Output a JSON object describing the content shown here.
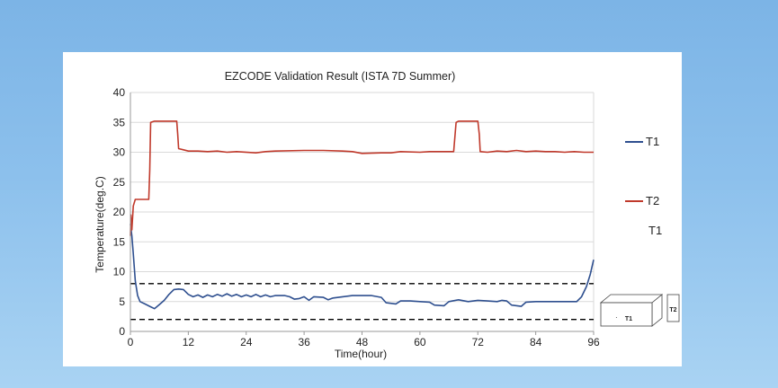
{
  "chart_data": {
    "type": "line",
    "title": "EZCODE Validation Result (ISTA 7D Summer)",
    "xlabel": "Time(hour)",
    "ylabel": "Temperature(deg.C)",
    "xlim": [
      0,
      96
    ],
    "ylim": [
      0,
      40
    ],
    "x_ticks": [
      0,
      12,
      24,
      36,
      48,
      60,
      72,
      84,
      96
    ],
    "y_ticks": [
      0,
      5,
      10,
      15,
      20,
      25,
      30,
      35,
      40
    ],
    "grid": "horizontal",
    "legend_placement": "right",
    "reference_lines": [
      {
        "y": 8,
        "style": "dashed",
        "color": "#000000"
      },
      {
        "y": 2,
        "style": "dashed",
        "color": "#000000"
      }
    ],
    "series": [
      {
        "name": "T1",
        "color": "#2e4f8f",
        "points": [
          [
            0,
            18
          ],
          [
            0.3,
            16
          ],
          [
            0.6,
            13
          ],
          [
            1,
            8.5
          ],
          [
            1.5,
            6
          ],
          [
            2,
            5
          ],
          [
            3,
            4.6
          ],
          [
            4,
            4.2
          ],
          [
            5,
            3.8
          ],
          [
            6,
            4.5
          ],
          [
            7,
            5.2
          ],
          [
            8,
            6.2
          ],
          [
            9,
            7
          ],
          [
            10,
            7.1
          ],
          [
            11,
            7
          ],
          [
            12,
            6.2
          ],
          [
            13,
            5.8
          ],
          [
            14,
            6.1
          ],
          [
            15,
            5.7
          ],
          [
            16,
            6.1
          ],
          [
            17,
            5.8
          ],
          [
            18,
            6.2
          ],
          [
            19,
            5.9
          ],
          [
            20,
            6.3
          ],
          [
            21,
            5.9
          ],
          [
            22,
            6.2
          ],
          [
            23,
            5.8
          ],
          [
            24,
            6.1
          ],
          [
            25,
            5.8
          ],
          [
            26,
            6.2
          ],
          [
            27,
            5.8
          ],
          [
            28,
            6.1
          ],
          [
            29,
            5.8
          ],
          [
            30,
            6
          ],
          [
            31,
            6
          ],
          [
            32,
            6
          ],
          [
            33,
            5.8
          ],
          [
            34,
            5.4
          ],
          [
            35,
            5.5
          ],
          [
            36,
            5.8
          ],
          [
            37,
            5.2
          ],
          [
            38,
            5.8
          ],
          [
            40,
            5.7
          ],
          [
            41,
            5.3
          ],
          [
            42,
            5.6
          ],
          [
            44,
            5.8
          ],
          [
            46,
            6
          ],
          [
            50,
            6
          ],
          [
            52,
            5.7
          ],
          [
            53,
            4.8
          ],
          [
            55,
            4.6
          ],
          [
            56,
            5.1
          ],
          [
            58,
            5.1
          ],
          [
            60,
            5
          ],
          [
            62,
            4.9
          ],
          [
            63,
            4.4
          ],
          [
            65,
            4.3
          ],
          [
            66,
            5
          ],
          [
            68,
            5.3
          ],
          [
            70,
            5
          ],
          [
            72,
            5.2
          ],
          [
            74,
            5.1
          ],
          [
            76,
            5
          ],
          [
            77,
            5.2
          ],
          [
            78,
            5.1
          ],
          [
            79,
            4.4
          ],
          [
            81,
            4.2
          ],
          [
            82,
            4.9
          ],
          [
            84,
            5
          ],
          [
            90,
            5
          ],
          [
            92.5,
            5
          ],
          [
            93.5,
            5.8
          ],
          [
            94.5,
            7.5
          ],
          [
            95.3,
            9.5
          ],
          [
            96,
            12
          ]
        ]
      },
      {
        "name": "T2",
        "color": "#c0392b",
        "points": [
          [
            0,
            16
          ],
          [
            0.1,
            19.5
          ],
          [
            0.3,
            17
          ],
          [
            0.6,
            21
          ],
          [
            1,
            22.1
          ],
          [
            3,
            22.1
          ],
          [
            3.8,
            22.1
          ],
          [
            4,
            27
          ],
          [
            4.2,
            35
          ],
          [
            5,
            35.2
          ],
          [
            9.6,
            35.2
          ],
          [
            9.8,
            33
          ],
          [
            10,
            30.6
          ],
          [
            11,
            30.4
          ],
          [
            12,
            30.2
          ],
          [
            14,
            30.2
          ],
          [
            16,
            30.1
          ],
          [
            18,
            30.2
          ],
          [
            20,
            30
          ],
          [
            22,
            30.1
          ],
          [
            26,
            29.9
          ],
          [
            28,
            30.1
          ],
          [
            30,
            30.2
          ],
          [
            36,
            30.3
          ],
          [
            40,
            30.3
          ],
          [
            44,
            30.2
          ],
          [
            46,
            30.1
          ],
          [
            48,
            29.8
          ],
          [
            52,
            29.9
          ],
          [
            54,
            29.9
          ],
          [
            56,
            30.1
          ],
          [
            60,
            30
          ],
          [
            62,
            30.1
          ],
          [
            66,
            30.1
          ],
          [
            67,
            30.1
          ],
          [
            67.5,
            35
          ],
          [
            68,
            35.2
          ],
          [
            72,
            35.2
          ],
          [
            72.3,
            33
          ],
          [
            72.5,
            30.1
          ],
          [
            74,
            30
          ],
          [
            76,
            30.2
          ],
          [
            78,
            30.1
          ],
          [
            80,
            30.3
          ],
          [
            82,
            30.1
          ],
          [
            84,
            30.2
          ],
          [
            86,
            30.1
          ],
          [
            88,
            30.1
          ],
          [
            90,
            30
          ],
          [
            92,
            30.1
          ],
          [
            94,
            30
          ],
          [
            96,
            30
          ]
        ]
      }
    ],
    "annotations": [
      "T1",
      "T1",
      "T2"
    ]
  }
}
